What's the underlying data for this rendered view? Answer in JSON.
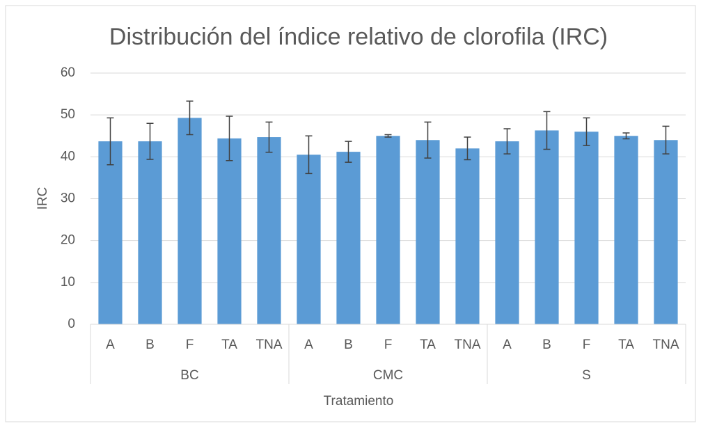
{
  "chart_data": {
    "type": "bar",
    "title": "Distribución del índice relativo de clorofila (IRC)",
    "x_label": "Tratamiento",
    "y_label": "IRC",
    "groups": [
      {
        "name": "BC",
        "categories": [
          "A",
          "B",
          "F",
          "TA",
          "TNA"
        ]
      },
      {
        "name": "CMC",
        "categories": [
          "A",
          "B",
          "F",
          "TA",
          "TNA"
        ]
      },
      {
        "name": "S",
        "categories": [
          "A",
          "B",
          "F",
          "TA",
          "TNA"
        ]
      }
    ],
    "values": [
      43.7,
      43.7,
      49.3,
      44.4,
      44.7,
      40.5,
      41.2,
      45,
      44,
      42,
      43.7,
      46.3,
      46,
      45,
      44
    ],
    "errors": [
      5.6,
      4.3,
      4,
      5.3,
      3.6,
      4.5,
      2.5,
      0.3,
      4.3,
      2.7,
      3,
      4.5,
      3.3,
      0.7,
      3.3
    ],
    "color": "#5b9bd5",
    "error_color": "#404040",
    "ylim": [
      0,
      60
    ],
    "yticks": [
      0,
      10,
      20,
      30,
      40,
      50,
      60
    ],
    "grid": true
  }
}
